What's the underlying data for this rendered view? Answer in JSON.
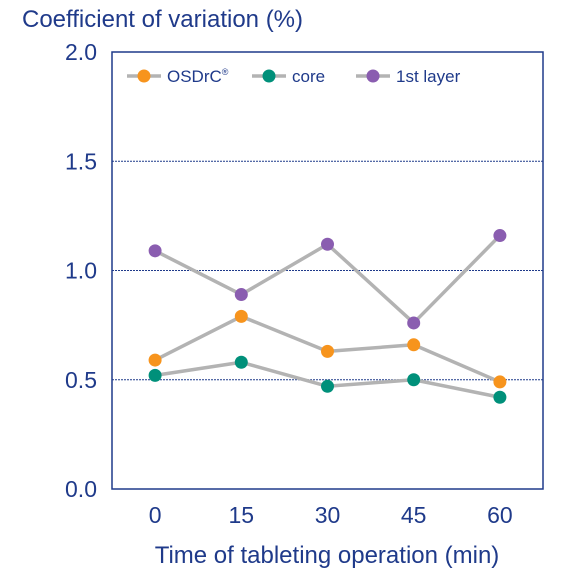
{
  "chart_data": {
    "type": "line",
    "ylabel": "Coefficient of variation (%)",
    "xlabel": "Time of tableting operation (min)",
    "x": [
      0,
      15,
      30,
      45,
      60
    ],
    "x_tick_labels": [
      "0",
      "15",
      "30",
      "45",
      "60"
    ],
    "ylim": [
      0.0,
      2.0
    ],
    "y_ticks": [
      0.0,
      0.5,
      1.0,
      1.5,
      2.0
    ],
    "y_tick_labels": [
      "0.0",
      "0.5",
      "1.0",
      "1.5",
      "2.0"
    ],
    "gridlines_y": [
      0.5,
      1.0,
      1.5
    ],
    "grid": "horizontal dashed",
    "legend_placement": "top",
    "series": [
      {
        "name": "OSDrC",
        "name_superscript": "®",
        "values": [
          0.59,
          0.79,
          0.63,
          0.66,
          0.49
        ],
        "marker_color": "#f7941d"
      },
      {
        "name": "core",
        "values": [
          0.52,
          0.58,
          0.47,
          0.5,
          0.42
        ],
        "marker_color": "#00907a"
      },
      {
        "name": "1st layer",
        "values": [
          1.09,
          0.89,
          1.12,
          0.76,
          1.16
        ],
        "marker_color": "#8a5db0"
      }
    ],
    "line_color": "#b3b3b3",
    "axis_color": "#1f3a8a"
  }
}
